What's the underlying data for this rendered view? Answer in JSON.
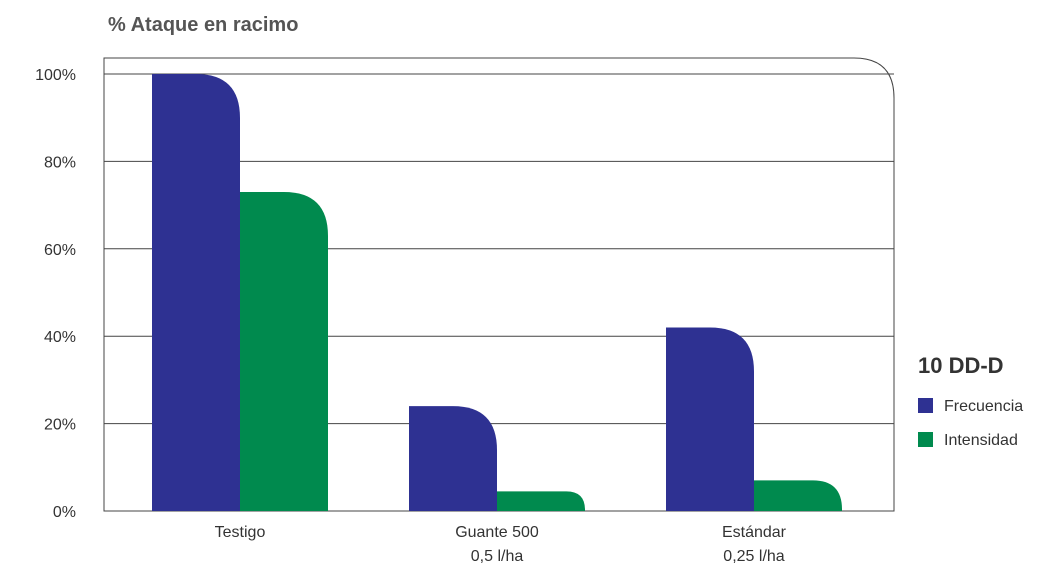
{
  "chart_data": {
    "type": "bar",
    "title": "% Ataque en racimo",
    "categories": [
      [
        "Testigo"
      ],
      [
        "Guante 500",
        "0,5 l/ha"
      ],
      [
        "Estándar",
        "0,25 l/ha"
      ]
    ],
    "series": [
      {
        "name": "Frecuencia",
        "color": "#2e3192",
        "values": [
          100,
          24,
          42
        ]
      },
      {
        "name": "Intensidad",
        "color": "#008a4e",
        "values": [
          73,
          4.5,
          7
        ]
      }
    ],
    "ylim": [
      0,
      100
    ],
    "yticks": [
      0,
      20,
      40,
      60,
      80,
      100
    ],
    "ytick_labels": [
      "0%",
      "20%",
      "40%",
      "60%",
      "80%",
      "100%"
    ],
    "grid": true,
    "legend": {
      "title": "10 DD-D",
      "position": "right"
    }
  }
}
